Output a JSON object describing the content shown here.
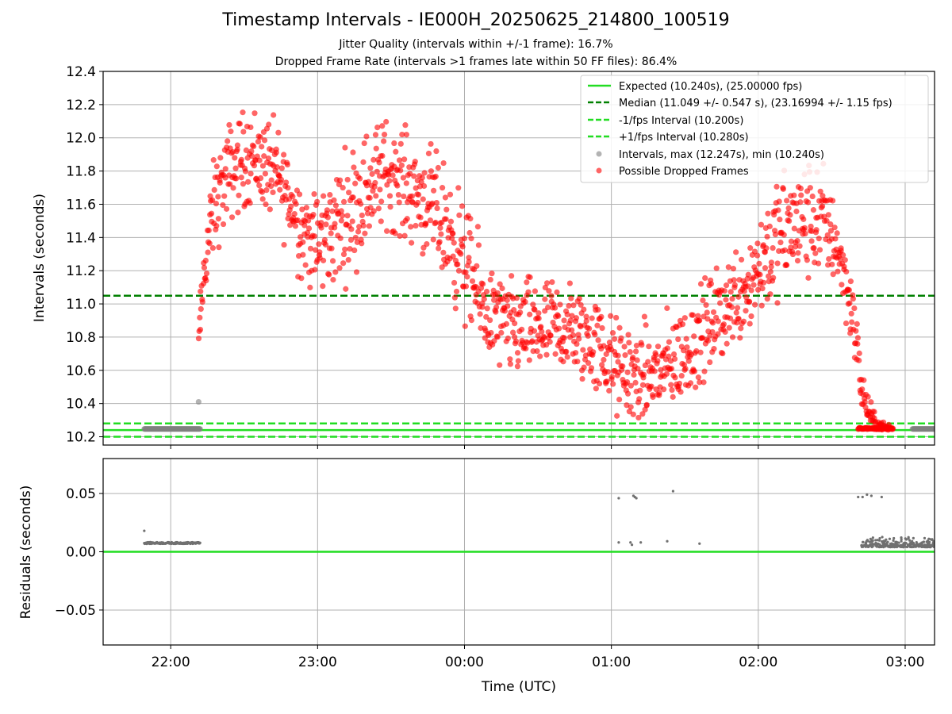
{
  "chart_data": {
    "type": "scatter",
    "title": "Timestamp Intervals - IE000H_20250625_214800_100519",
    "subtitles": [
      "Jitter Quality (intervals within +/-1 frame): 16.7%",
      "Dropped Frame Rate (intervals >1 frames late within 50 FF files): 86.4%"
    ],
    "xlabel": "Time (UTC)",
    "x_ticks": [
      "22:00",
      "23:00",
      "00:00",
      "01:00",
      "02:00",
      "03:00"
    ],
    "x_tick_hours": [
      22,
      23,
      24,
      25,
      26,
      27
    ],
    "xlim_hours": [
      21.54,
      27.2
    ],
    "grid": true,
    "top_panel": {
      "ylabel": "Intervals (seconds)",
      "ylim": [
        10.15,
        12.4
      ],
      "y_ticks": [
        "10.2",
        "10.4",
        "10.6",
        "10.8",
        "11.0",
        "11.2",
        "11.4",
        "11.6",
        "11.8",
        "12.0",
        "12.2",
        "12.4"
      ],
      "y_tick_values": [
        10.2,
        10.4,
        10.6,
        10.8,
        11.0,
        11.2,
        11.4,
        11.6,
        11.8,
        12.0,
        12.2,
        12.4
      ],
      "legend_position": "top-right",
      "legend": [
        {
          "label": "Expected (10.240s), (25.00000 fps)",
          "style": "solid",
          "color": "#22dd22"
        },
        {
          "label": "Median (11.049 +/- 0.547 s), (23.16994 +/- 1.15 fps)",
          "style": "dashed",
          "color": "#008000"
        },
        {
          "label": "-1/fps Interval (10.200s)",
          "style": "dashed",
          "color": "#22dd22"
        },
        {
          "label": "+1/fps Interval (10.280s)",
          "style": "dashed",
          "color": "#22dd22"
        },
        {
          "label": "Intervals, max (12.247s), min (10.240s)",
          "style": "marker",
          "color": "#808080"
        },
        {
          "label": "Possible Dropped Frames",
          "style": "marker",
          "color": "#ff0000"
        }
      ],
      "reference_lines": [
        {
          "y": 10.24,
          "style": "solid",
          "color": "#22dd22"
        },
        {
          "y": 11.049,
          "style": "dashed",
          "color": "#008000"
        },
        {
          "y": 10.2,
          "style": "dashed",
          "color": "#22dd22"
        },
        {
          "y": 10.28,
          "style": "dashed",
          "color": "#22dd22"
        }
      ],
      "normal_intervals": {
        "color": "#808080",
        "segments": [
          {
            "x_start": 21.82,
            "x_end": 22.2,
            "y": 10.247
          },
          {
            "x_start": 27.05,
            "x_end": 27.2,
            "y": 10.247
          }
        ],
        "points": [
          {
            "x": 22.19,
            "y": 10.41
          }
        ]
      },
      "dropped_frames": {
        "color": "#ff0000",
        "envelope_x": [
          22.19,
          22.2,
          22.24,
          22.3,
          22.4,
          22.55,
          22.7,
          22.8,
          22.9,
          23.0,
          23.15,
          23.3,
          23.45,
          23.55,
          23.7,
          23.85,
          24.0,
          24.15,
          24.3,
          24.5,
          24.7,
          24.9,
          25.05,
          25.2,
          25.35,
          25.5,
          25.65,
          25.8,
          25.95,
          26.05,
          26.2,
          26.35,
          26.45,
          26.52,
          26.58,
          26.63,
          26.67,
          26.7,
          26.75,
          26.8,
          26.9
        ],
        "envelope_mean": [
          10.75,
          10.9,
          11.3,
          11.6,
          11.8,
          11.9,
          11.8,
          11.65,
          11.45,
          11.35,
          11.5,
          11.65,
          11.8,
          11.75,
          11.65,
          11.5,
          11.25,
          10.95,
          10.85,
          10.85,
          10.85,
          10.75,
          10.6,
          10.55,
          10.6,
          10.7,
          10.85,
          11.0,
          11.15,
          11.3,
          11.45,
          11.5,
          11.5,
          11.4,
          11.2,
          11.0,
          10.75,
          10.5,
          10.35,
          10.28,
          10.25
        ],
        "envelope_spread": [
          0.05,
          0.1,
          0.17,
          0.2,
          0.2,
          0.2,
          0.2,
          0.2,
          0.2,
          0.22,
          0.25,
          0.25,
          0.22,
          0.22,
          0.22,
          0.25,
          0.25,
          0.2,
          0.2,
          0.2,
          0.2,
          0.2,
          0.2,
          0.2,
          0.2,
          0.2,
          0.2,
          0.2,
          0.22,
          0.25,
          0.25,
          0.25,
          0.22,
          0.2,
          0.15,
          0.15,
          0.15,
          0.1,
          0.06,
          0.03,
          0.01
        ],
        "y_range": [
          10.24,
          12.247
        ]
      }
    },
    "bottom_panel": {
      "ylabel": "Residuals (seconds)",
      "ylim": [
        -0.08,
        0.08
      ],
      "y_ticks": [
        "−0.05",
        "0.00",
        "0.05"
      ],
      "y_tick_values": [
        -0.05,
        0.0,
        0.05
      ],
      "reference_lines": [
        {
          "y": 0.0,
          "style": "solid",
          "color": "#22dd22"
        }
      ],
      "residual_segments": [
        {
          "x_start": 21.82,
          "x_end": 22.2,
          "y": 0.0075
        }
      ],
      "residual_band": {
        "x_start": 26.7,
        "x_end": 27.2,
        "y_min": 0.004,
        "y_max": 0.013
      },
      "residual_points": [
        {
          "x": 21.82,
          "y": 0.018
        },
        {
          "x": 25.05,
          "y": 0.046
        },
        {
          "x": 25.05,
          "y": 0.008
        },
        {
          "x": 25.15,
          "y": 0.048
        },
        {
          "x": 25.16,
          "y": 0.047
        },
        {
          "x": 25.17,
          "y": 0.046
        },
        {
          "x": 25.13,
          "y": 0.008
        },
        {
          "x": 25.14,
          "y": 0.006
        },
        {
          "x": 25.2,
          "y": 0.008
        },
        {
          "x": 25.38,
          "y": 0.009
        },
        {
          "x": 25.42,
          "y": 0.052
        },
        {
          "x": 25.6,
          "y": 0.007
        },
        {
          "x": 26.68,
          "y": 0.047
        },
        {
          "x": 26.71,
          "y": 0.047
        },
        {
          "x": 26.74,
          "y": 0.049
        },
        {
          "x": 26.77,
          "y": 0.048
        },
        {
          "x": 26.84,
          "y": 0.047
        }
      ]
    }
  }
}
